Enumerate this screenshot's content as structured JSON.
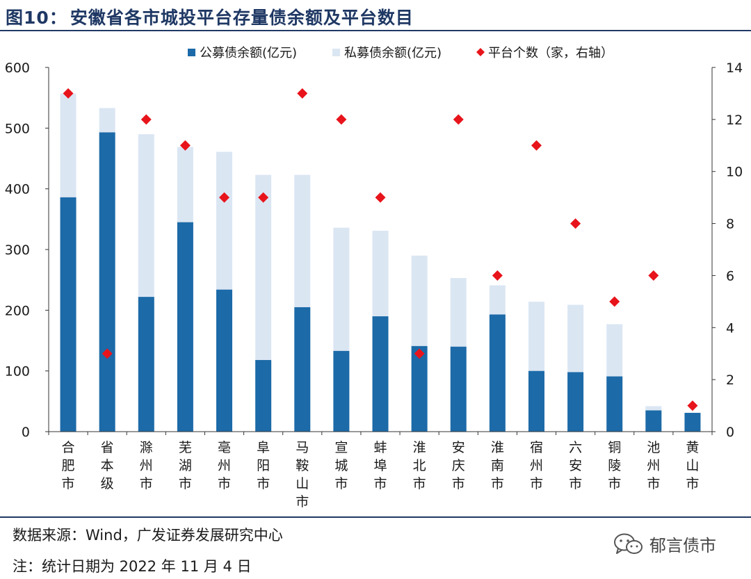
{
  "figure": {
    "title_num": "图10",
    "title_sep": "：",
    "title_text": "安徽省各市城投平台存量债余额及平台数目"
  },
  "colors": {
    "public": "#1c6aa8",
    "private": "#dbe6f3",
    "count": "#e8141b",
    "title": "#1f3864"
  },
  "chart_data": {
    "type": "bar",
    "stacked": true,
    "categories": [
      "合肥市",
      "省本级",
      "滁州市",
      "芜湖市",
      "亳州市",
      "阜阳市",
      "马鞍山市",
      "宣城市",
      "蚌埠市",
      "淮北市",
      "安庆市",
      "淮南市",
      "宿州市",
      "六安市",
      "铜陵市",
      "池州市",
      "黄山市"
    ],
    "series": [
      {
        "name": "公募债余额(亿元)",
        "axis": "left",
        "kind": "bar",
        "values": [
          386,
          493,
          222,
          345,
          234,
          118,
          205,
          133,
          190,
          141,
          140,
          193,
          100,
          98,
          91,
          35,
          31
        ]
      },
      {
        "name": "私募债余额(亿元)",
        "axis": "left",
        "kind": "bar",
        "values": [
          171,
          40,
          268,
          124,
          227,
          305,
          218,
          203,
          141,
          149,
          113,
          48,
          114,
          111,
          86,
          7,
          0
        ]
      },
      {
        "name": "平台个数（家，右轴）",
        "axis": "right",
        "kind": "marker",
        "values": [
          13,
          3,
          12,
          11,
          9,
          9,
          13,
          12,
          9,
          3,
          12,
          6,
          11,
          8,
          5,
          6,
          1
        ]
      }
    ],
    "ylim": [
      0,
      600
    ],
    "y_ticks": [
      "0",
      "100",
      "200",
      "300",
      "400",
      "500",
      "600"
    ],
    "y2lim": [
      0,
      14
    ],
    "y2_ticks": [
      "0",
      "2",
      "4",
      "6",
      "8",
      "10",
      "12",
      "14"
    ],
    "legend_position": "top-center"
  },
  "footer": {
    "source": "数据来源：Wind，广发证券发展研究中心",
    "note": "注：统计日期为 2022 年 11 月 4 日"
  },
  "watermark": {
    "text": "郁言债市",
    "icon": "wechat-icon"
  }
}
